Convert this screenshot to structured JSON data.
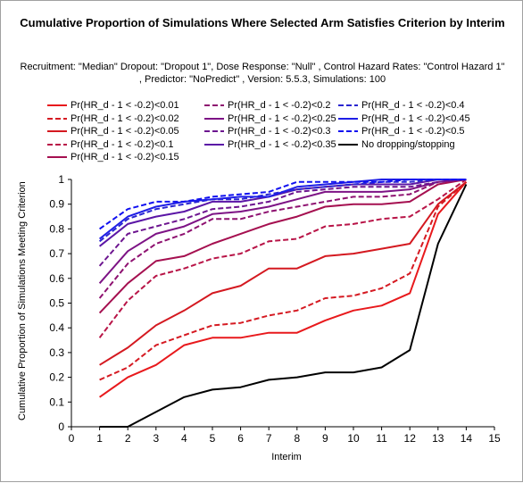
{
  "chart_data": {
    "type": "line",
    "title": "Cumulative Proportion of Simulations Where Selected Arm Satisfies Criterion by Interim",
    "subtitle": "Recruitment: \"Median\" Dropout: \"Dropout 1\", Dose Response: \"Null\" , Control Hazard Rates: \"Control Hazard 1\" , Predictor: \"NoPredict\" , Version: 5.5.3, Simulations: 100",
    "xlabel": "Interim",
    "ylabel": "Cumulative Proportion of Simulations Meeting Criterion",
    "xlim": [
      0,
      15
    ],
    "ylim": [
      0,
      1
    ],
    "xticks": [
      "0",
      "1",
      "2",
      "3",
      "4",
      "5",
      "6",
      "7",
      "8",
      "9",
      "10",
      "11",
      "12",
      "13",
      "14",
      "15"
    ],
    "yticks": [
      "0",
      "0.1",
      "0.2",
      "0.3",
      "0.4",
      "0.5",
      "0.6",
      "0.7",
      "0.8",
      "0.9",
      "1"
    ],
    "x": [
      1,
      2,
      3,
      4,
      5,
      6,
      7,
      8,
      9,
      10,
      11,
      12,
      13,
      14
    ],
    "series": [
      {
        "name": "Pr(HR_d - 1 < -0.2)<0.01",
        "color": "#e8191c",
        "dash": "solid",
        "values": [
          0.12,
          0.2,
          0.25,
          0.33,
          0.36,
          0.36,
          0.38,
          0.38,
          0.43,
          0.47,
          0.49,
          0.54,
          0.86,
          0.99
        ]
      },
      {
        "name": "Pr(HR_d - 1 < -0.2)<0.02",
        "color": "#d51a22",
        "dash": "dashed",
        "values": [
          0.19,
          0.24,
          0.33,
          0.37,
          0.41,
          0.42,
          0.45,
          0.47,
          0.52,
          0.53,
          0.56,
          0.62,
          0.89,
          0.99
        ]
      },
      {
        "name": "Pr(HR_d - 1 < -0.2)<0.05",
        "color": "#d41920",
        "dash": "solid",
        "values": [
          0.25,
          0.32,
          0.41,
          0.47,
          0.54,
          0.57,
          0.64,
          0.64,
          0.69,
          0.7,
          0.72,
          0.74,
          0.9,
          0.99
        ]
      },
      {
        "name": "Pr(HR_d - 1 < -0.2)<0.1",
        "color": "#b81447",
        "dash": "dashed",
        "values": [
          0.36,
          0.51,
          0.61,
          0.64,
          0.68,
          0.7,
          0.75,
          0.76,
          0.81,
          0.82,
          0.84,
          0.85,
          0.92,
          1.0
        ]
      },
      {
        "name": "Pr(HR_d - 1 < -0.2)<0.15",
        "color": "#a51050",
        "dash": "solid",
        "values": [
          0.46,
          0.58,
          0.67,
          0.69,
          0.74,
          0.78,
          0.82,
          0.85,
          0.89,
          0.9,
          0.9,
          0.91,
          0.98,
          1.0
        ]
      },
      {
        "name": "Pr(HR_d - 1 < -0.2)<0.2",
        "color": "#8e1170",
        "dash": "dashed",
        "values": [
          0.52,
          0.66,
          0.74,
          0.78,
          0.84,
          0.84,
          0.87,
          0.89,
          0.91,
          0.93,
          0.93,
          0.94,
          0.99,
          1.0
        ]
      },
      {
        "name": "Pr(HR_d - 1 < -0.2)<0.25",
        "color": "#7d1385",
        "dash": "solid",
        "values": [
          0.58,
          0.71,
          0.78,
          0.81,
          0.86,
          0.87,
          0.89,
          0.92,
          0.95,
          0.95,
          0.95,
          0.96,
          0.99,
          1.0
        ]
      },
      {
        "name": "Pr(HR_d - 1 < -0.2)<0.3",
        "color": "#6c148f",
        "dash": "dashed",
        "values": [
          0.65,
          0.78,
          0.81,
          0.84,
          0.88,
          0.89,
          0.91,
          0.95,
          0.96,
          0.97,
          0.97,
          0.97,
          0.99,
          1.0
        ]
      },
      {
        "name": "Pr(HR_d - 1 < -0.2)<0.35",
        "color": "#5b16a6",
        "dash": "solid",
        "values": [
          0.73,
          0.82,
          0.85,
          0.87,
          0.91,
          0.91,
          0.93,
          0.96,
          0.97,
          0.98,
          0.98,
          0.98,
          1.0,
          1.0
        ]
      },
      {
        "name": "Pr(HR_d - 1 < -0.2)<0.4",
        "color": "#2a26d0",
        "dash": "dashed",
        "values": [
          0.75,
          0.84,
          0.88,
          0.9,
          0.92,
          0.92,
          0.94,
          0.96,
          0.97,
          0.98,
          0.99,
          0.99,
          1.0,
          1.0
        ]
      },
      {
        "name": "Pr(HR_d - 1 < -0.2)<0.45",
        "color": "#1e1ee6",
        "dash": "solid",
        "values": [
          0.76,
          0.85,
          0.89,
          0.91,
          0.92,
          0.93,
          0.93,
          0.97,
          0.98,
          0.99,
          1.0,
          1.0,
          1.0,
          1.0
        ]
      },
      {
        "name": "Pr(HR_d - 1 < -0.2)<0.5",
        "color": "#1010f0",
        "dash": "dashed",
        "values": [
          0.8,
          0.88,
          0.91,
          0.91,
          0.93,
          0.94,
          0.95,
          0.99,
          0.99,
          0.99,
          0.99,
          1.0,
          1.0,
          1.0
        ]
      },
      {
        "name": "No dropping/stopping",
        "color": "#000000",
        "dash": "solid",
        "values": [
          0.0,
          0.0,
          0.06,
          0.12,
          0.15,
          0.16,
          0.19,
          0.2,
          0.22,
          0.22,
          0.24,
          0.31,
          0.74,
          0.98
        ]
      }
    ]
  }
}
